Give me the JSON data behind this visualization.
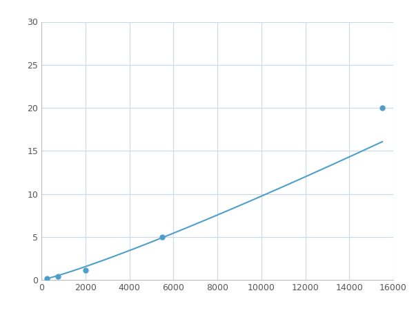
{
  "x_points": [
    250,
    750,
    2000,
    5500,
    15500
  ],
  "y_points": [
    0.2,
    0.4,
    1.1,
    5.0,
    20.0
  ],
  "line_color": "#4d9fca",
  "marker_color": "#4d9fca",
  "marker_size": 5,
  "line_width": 1.5,
  "xlim": [
    0,
    16000
  ],
  "ylim": [
    0,
    30
  ],
  "xticks": [
    0,
    2000,
    4000,
    6000,
    8000,
    10000,
    12000,
    14000,
    16000
  ],
  "yticks": [
    0,
    5,
    10,
    15,
    20,
    25,
    30
  ],
  "grid_color": "#c8d8e8",
  "background_color": "#ffffff",
  "figsize": [
    6.0,
    4.5
  ],
  "dpi": 100
}
